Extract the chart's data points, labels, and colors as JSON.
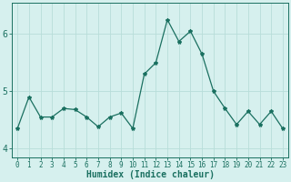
{
  "x": [
    0,
    1,
    2,
    3,
    4,
    5,
    6,
    7,
    8,
    9,
    10,
    11,
    12,
    13,
    14,
    15,
    16,
    17,
    18,
    19,
    20,
    21,
    22,
    23
  ],
  "y": [
    4.35,
    4.9,
    4.55,
    4.55,
    4.7,
    4.68,
    4.55,
    4.38,
    4.55,
    4.62,
    4.35,
    5.3,
    5.5,
    6.25,
    5.87,
    6.05,
    5.65,
    5.0,
    4.7,
    4.42,
    4.65,
    4.42,
    4.65,
    4.35
  ],
  "line_color": "#1a7060",
  "marker": "*",
  "marker_size": 3,
  "bg_color": "#d6f0ee",
  "grid_color": "#b8ddd9",
  "xlabel": "Humidex (Indice chaleur)",
  "xlabel_fontsize": 7,
  "tick_fontsize": 5.5,
  "ytick_fontsize": 7,
  "yticks": [
    4,
    5,
    6
  ],
  "ylim": [
    3.85,
    6.55
  ],
  "xlim": [
    -0.5,
    23.5
  ]
}
